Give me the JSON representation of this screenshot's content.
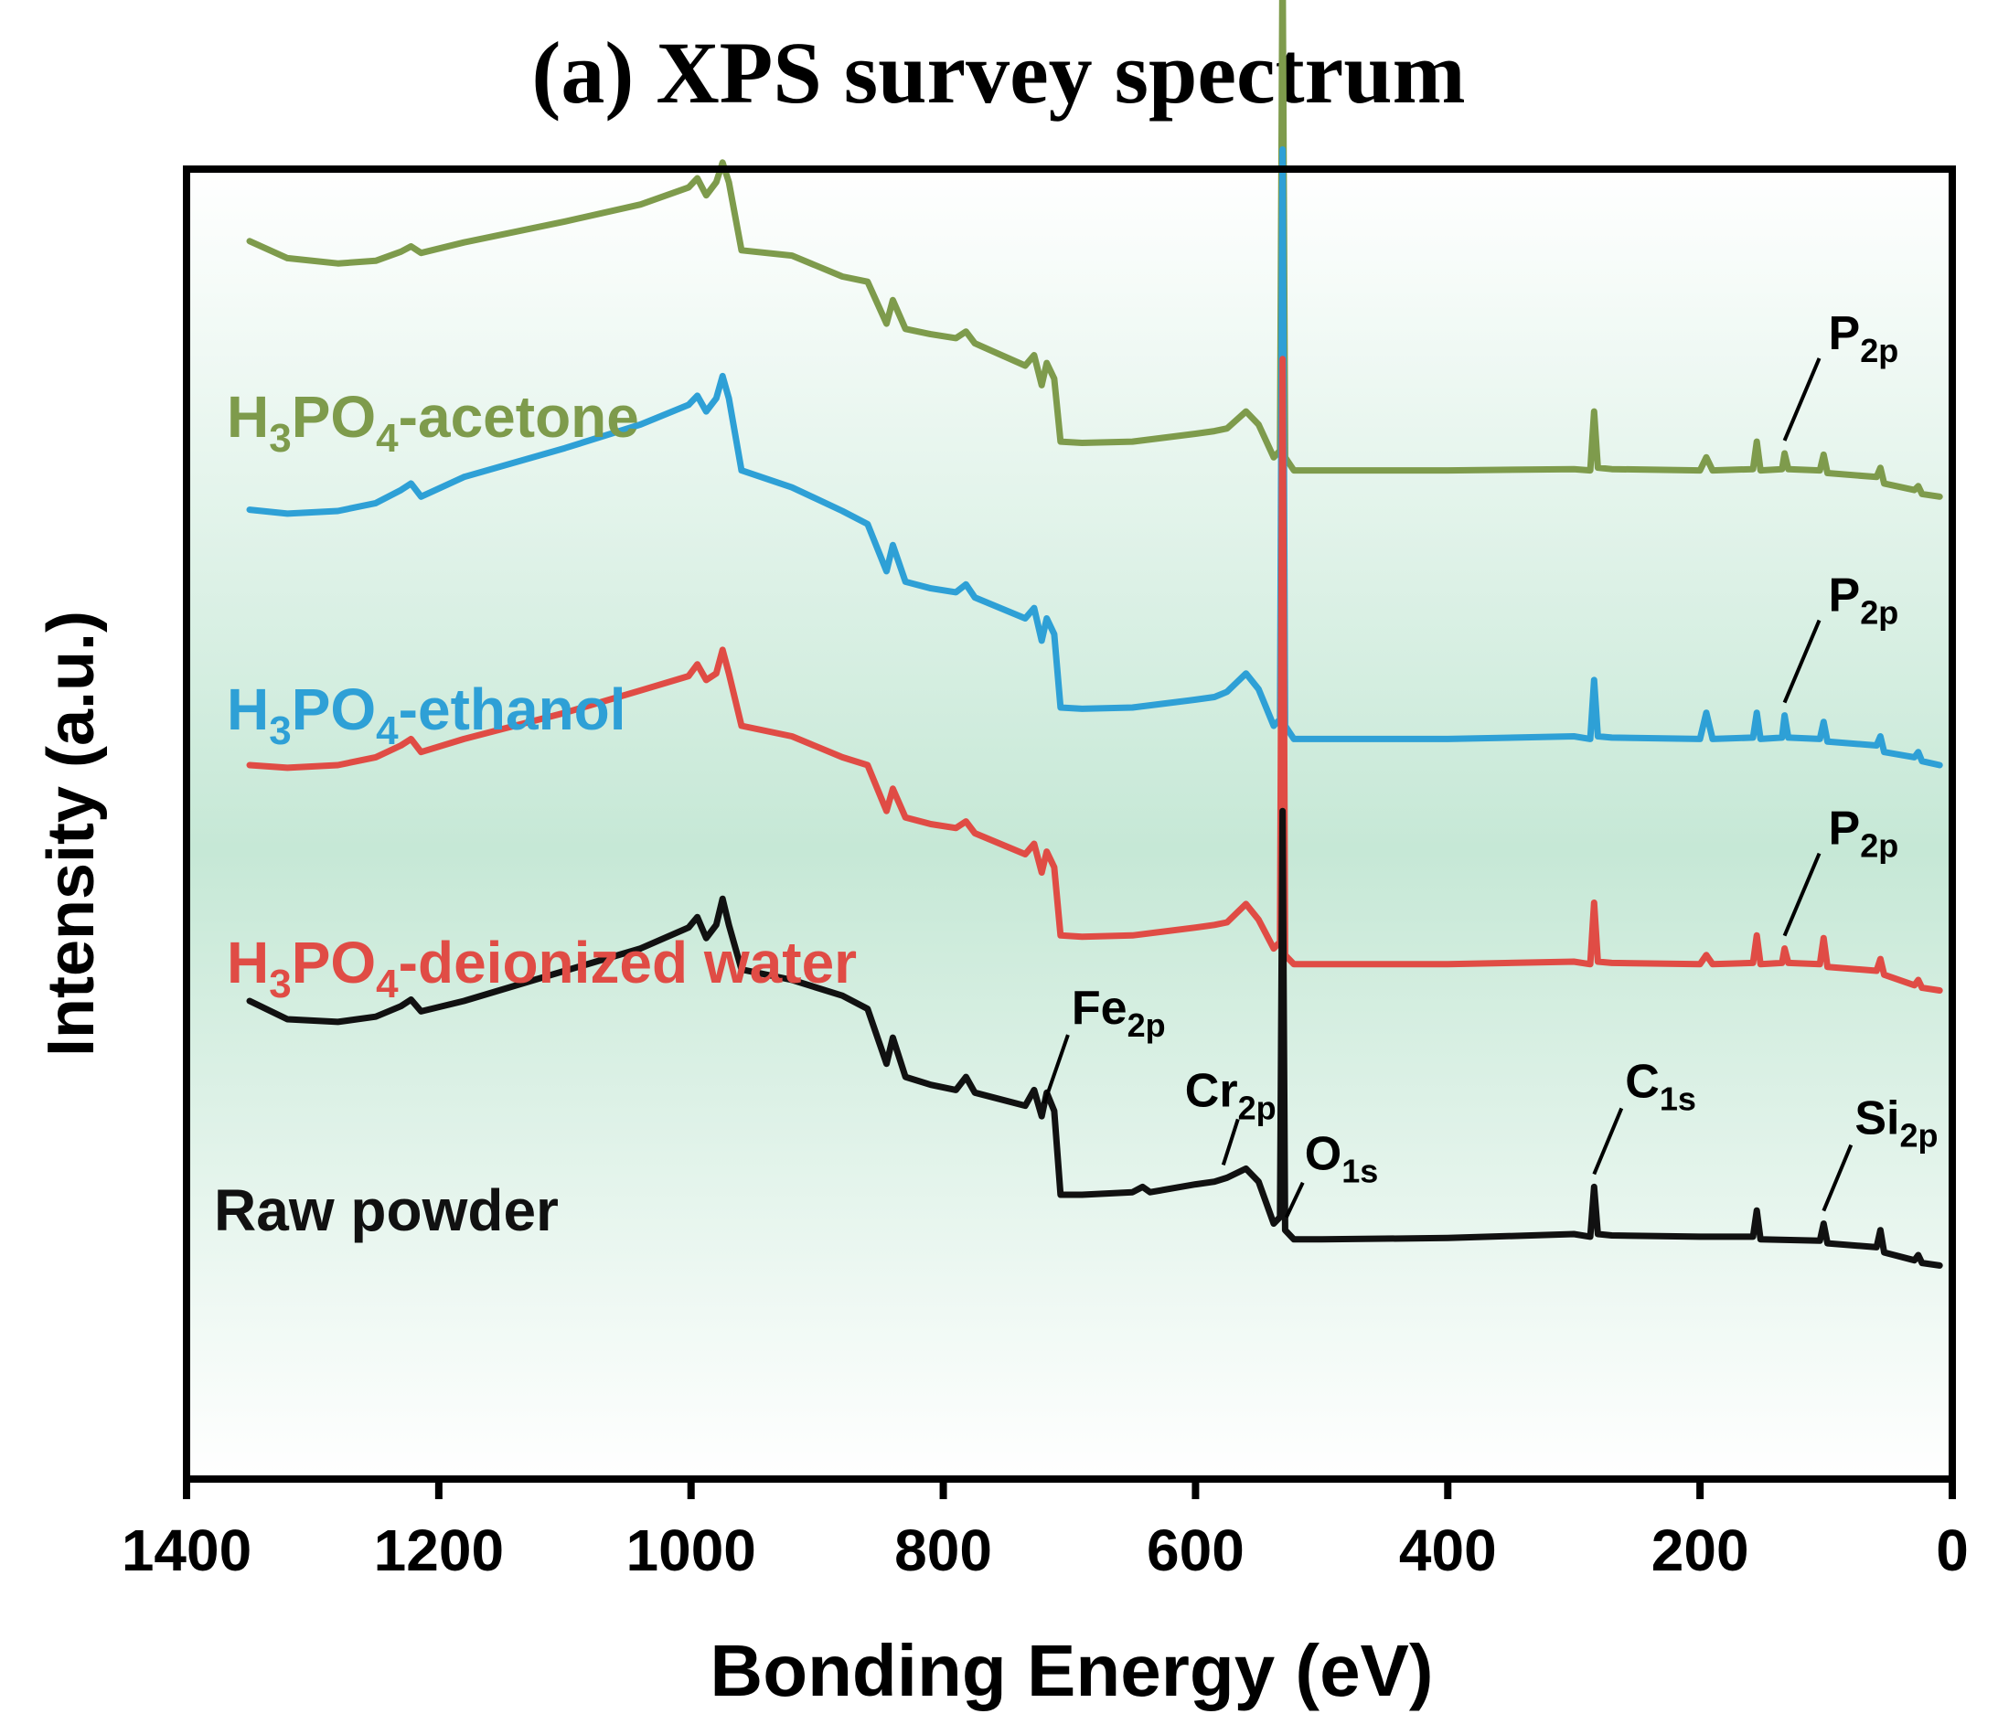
{
  "chart_data": {
    "type": "line",
    "title": "(a) XPS survey spectrum",
    "xlabel": "Bonding Energy (eV)",
    "ylabel": "Intensity (a.u.)",
    "xlim": [
      1400,
      0
    ],
    "x_reversed": true,
    "ylim": [
      0,
      10
    ],
    "xticks": [
      1400,
      1200,
      1000,
      800,
      600,
      400,
      200,
      0
    ],
    "ytick_labels_shown": false,
    "grid": false,
    "background_colors": [
      "#ffffff",
      "#c6e8d6",
      "#ffffff"
    ],
    "series": [
      {
        "name": "H3PO4-acetone",
        "label": {
          "main": "H",
          "sub1": "3",
          "mid": "PO",
          "sub2": "4",
          "tail": "-acetone"
        },
        "color": "#7e9b4c",
        "offset": 7.2,
        "points": [
          [
            1350,
            2.25
          ],
          [
            1320,
            2.12
          ],
          [
            1280,
            2.08
          ],
          [
            1250,
            2.1
          ],
          [
            1230,
            2.17
          ],
          [
            1222,
            2.21
          ],
          [
            1214,
            2.16
          ],
          [
            1180,
            2.24
          ],
          [
            1100,
            2.4
          ],
          [
            1040,
            2.53
          ],
          [
            1002,
            2.66
          ],
          [
            995,
            2.73
          ],
          [
            988,
            2.6
          ],
          [
            980,
            2.7
          ],
          [
            975,
            2.85
          ],
          [
            970,
            2.7
          ],
          [
            960,
            2.18
          ],
          [
            920,
            2.14
          ],
          [
            880,
            1.98
          ],
          [
            860,
            1.94
          ],
          [
            845,
            1.62
          ],
          [
            840,
            1.8
          ],
          [
            830,
            1.58
          ],
          [
            810,
            1.54
          ],
          [
            790,
            1.51
          ],
          [
            782,
            1.56
          ],
          [
            775,
            1.47
          ],
          [
            735,
            1.3
          ],
          [
            728,
            1.38
          ],
          [
            722,
            1.15
          ],
          [
            718,
            1.32
          ],
          [
            712,
            1.2
          ],
          [
            707,
            0.72
          ],
          [
            690,
            0.71
          ],
          [
            650,
            0.72
          ],
          [
            600,
            0.78
          ],
          [
            585,
            0.8
          ],
          [
            575,
            0.82
          ],
          [
            560,
            0.95
          ],
          [
            550,
            0.85
          ],
          [
            538,
            0.6
          ],
          [
            533,
            0.65
          ],
          [
            531,
            4.5
          ],
          [
            529,
            0.6
          ],
          [
            522,
            0.5
          ],
          [
            500,
            0.5
          ],
          [
            400,
            0.5
          ],
          [
            300,
            0.51
          ],
          [
            287,
            0.5
          ],
          [
            284,
            0.95
          ],
          [
            281,
            0.52
          ],
          [
            270,
            0.51
          ],
          [
            200,
            0.5
          ],
          [
            195,
            0.6
          ],
          [
            190,
            0.5
          ],
          [
            158,
            0.51
          ],
          [
            155,
            0.72
          ],
          [
            152,
            0.5
          ],
          [
            135,
            0.51
          ],
          [
            133,
            0.63
          ],
          [
            130,
            0.51
          ],
          [
            105,
            0.5
          ],
          [
            102,
            0.62
          ],
          [
            99,
            0.48
          ],
          [
            60,
            0.45
          ],
          [
            57,
            0.52
          ],
          [
            54,
            0.4
          ],
          [
            30,
            0.35
          ],
          [
            27,
            0.38
          ],
          [
            24,
            0.32
          ],
          [
            10,
            0.3
          ]
        ]
      },
      {
        "name": "H3PO4-ethanol",
        "label": {
          "main": "H",
          "sub1": "3",
          "mid": "PO",
          "sub2": "4",
          "tail": "-ethanol"
        },
        "color": "#2ea0d6",
        "offset": 5.15,
        "points": [
          [
            1350,
            2.25
          ],
          [
            1320,
            2.22
          ],
          [
            1280,
            2.24
          ],
          [
            1250,
            2.3
          ],
          [
            1230,
            2.4
          ],
          [
            1222,
            2.45
          ],
          [
            1214,
            2.35
          ],
          [
            1180,
            2.5
          ],
          [
            1100,
            2.72
          ],
          [
            1040,
            2.9
          ],
          [
            1002,
            3.05
          ],
          [
            995,
            3.12
          ],
          [
            988,
            3.0
          ],
          [
            980,
            3.1
          ],
          [
            975,
            3.27
          ],
          [
            970,
            3.1
          ],
          [
            960,
            2.55
          ],
          [
            920,
            2.42
          ],
          [
            880,
            2.24
          ],
          [
            860,
            2.14
          ],
          [
            845,
            1.78
          ],
          [
            840,
            1.98
          ],
          [
            830,
            1.7
          ],
          [
            810,
            1.65
          ],
          [
            790,
            1.62
          ],
          [
            782,
            1.68
          ],
          [
            775,
            1.58
          ],
          [
            735,
            1.42
          ],
          [
            728,
            1.5
          ],
          [
            722,
            1.25
          ],
          [
            718,
            1.42
          ],
          [
            712,
            1.3
          ],
          [
            707,
            0.74
          ],
          [
            690,
            0.73
          ],
          [
            650,
            0.74
          ],
          [
            600,
            0.8
          ],
          [
            585,
            0.82
          ],
          [
            575,
            0.86
          ],
          [
            560,
            1.0
          ],
          [
            550,
            0.88
          ],
          [
            538,
            0.6
          ],
          [
            533,
            0.65
          ],
          [
            531,
            5.0
          ],
          [
            529,
            0.6
          ],
          [
            522,
            0.5
          ],
          [
            500,
            0.5
          ],
          [
            400,
            0.5
          ],
          [
            300,
            0.52
          ],
          [
            287,
            0.5
          ],
          [
            284,
            0.95
          ],
          [
            281,
            0.52
          ],
          [
            270,
            0.51
          ],
          [
            200,
            0.5
          ],
          [
            195,
            0.7
          ],
          [
            190,
            0.5
          ],
          [
            158,
            0.51
          ],
          [
            155,
            0.7
          ],
          [
            152,
            0.5
          ],
          [
            135,
            0.51
          ],
          [
            133,
            0.68
          ],
          [
            130,
            0.51
          ],
          [
            105,
            0.5
          ],
          [
            102,
            0.63
          ],
          [
            99,
            0.48
          ],
          [
            60,
            0.45
          ],
          [
            57,
            0.52
          ],
          [
            54,
            0.4
          ],
          [
            30,
            0.36
          ],
          [
            27,
            0.4
          ],
          [
            24,
            0.33
          ],
          [
            10,
            0.3
          ]
        ]
      },
      {
        "name": "H3PO4-deionized water",
        "label": {
          "main": "H",
          "sub1": "3",
          "mid": "PO",
          "sub2": "4",
          "tail": "-deionized water"
        },
        "color": "#e04c45",
        "offset": 3.55,
        "points": [
          [
            1350,
            1.9
          ],
          [
            1320,
            1.88
          ],
          [
            1280,
            1.9
          ],
          [
            1250,
            1.96
          ],
          [
            1230,
            2.05
          ],
          [
            1222,
            2.1
          ],
          [
            1214,
            2.0
          ],
          [
            1180,
            2.1
          ],
          [
            1100,
            2.3
          ],
          [
            1040,
            2.47
          ],
          [
            1002,
            2.58
          ],
          [
            995,
            2.67
          ],
          [
            988,
            2.55
          ],
          [
            980,
            2.6
          ],
          [
            975,
            2.78
          ],
          [
            970,
            2.6
          ],
          [
            960,
            2.2
          ],
          [
            920,
            2.12
          ],
          [
            880,
            1.96
          ],
          [
            860,
            1.9
          ],
          [
            845,
            1.55
          ],
          [
            840,
            1.72
          ],
          [
            830,
            1.5
          ],
          [
            810,
            1.45
          ],
          [
            790,
            1.42
          ],
          [
            782,
            1.47
          ],
          [
            775,
            1.38
          ],
          [
            735,
            1.22
          ],
          [
            728,
            1.3
          ],
          [
            722,
            1.08
          ],
          [
            718,
            1.24
          ],
          [
            712,
            1.12
          ],
          [
            707,
            0.6
          ],
          [
            690,
            0.59
          ],
          [
            650,
            0.6
          ],
          [
            600,
            0.66
          ],
          [
            585,
            0.68
          ],
          [
            575,
            0.7
          ],
          [
            560,
            0.84
          ],
          [
            550,
            0.72
          ],
          [
            538,
            0.5
          ],
          [
            533,
            0.55
          ],
          [
            531,
            5.0
          ],
          [
            529,
            0.45
          ],
          [
            522,
            0.38
          ],
          [
            500,
            0.38
          ],
          [
            400,
            0.38
          ],
          [
            300,
            0.4
          ],
          [
            287,
            0.38
          ],
          [
            284,
            0.85
          ],
          [
            281,
            0.4
          ],
          [
            270,
            0.39
          ],
          [
            200,
            0.38
          ],
          [
            195,
            0.45
          ],
          [
            190,
            0.38
          ],
          [
            158,
            0.39
          ],
          [
            155,
            0.6
          ],
          [
            152,
            0.38
          ],
          [
            135,
            0.39
          ],
          [
            133,
            0.5
          ],
          [
            130,
            0.39
          ],
          [
            105,
            0.38
          ],
          [
            102,
            0.58
          ],
          [
            99,
            0.36
          ],
          [
            60,
            0.33
          ],
          [
            57,
            0.42
          ],
          [
            54,
            0.3
          ],
          [
            30,
            0.22
          ],
          [
            27,
            0.26
          ],
          [
            24,
            0.2
          ],
          [
            10,
            0.18
          ]
        ]
      },
      {
        "name": "Raw powder",
        "label": {
          "main": "Raw powder",
          "sub1": "",
          "mid": "",
          "sub2": "",
          "tail": ""
        },
        "color": "#111111",
        "offset": 1.45,
        "points": [
          [
            1350,
            2.2
          ],
          [
            1320,
            2.06
          ],
          [
            1280,
            2.04
          ],
          [
            1250,
            2.08
          ],
          [
            1230,
            2.16
          ],
          [
            1222,
            2.21
          ],
          [
            1214,
            2.12
          ],
          [
            1180,
            2.2
          ],
          [
            1100,
            2.43
          ],
          [
            1040,
            2.6
          ],
          [
            1002,
            2.76
          ],
          [
            995,
            2.84
          ],
          [
            988,
            2.68
          ],
          [
            980,
            2.78
          ],
          [
            975,
            2.98
          ],
          [
            970,
            2.78
          ],
          [
            960,
            2.44
          ],
          [
            920,
            2.36
          ],
          [
            880,
            2.24
          ],
          [
            860,
            2.14
          ],
          [
            845,
            1.72
          ],
          [
            840,
            1.92
          ],
          [
            830,
            1.62
          ],
          [
            810,
            1.56
          ],
          [
            790,
            1.52
          ],
          [
            782,
            1.62
          ],
          [
            775,
            1.5
          ],
          [
            735,
            1.4
          ],
          [
            728,
            1.52
          ],
          [
            722,
            1.32
          ],
          [
            718,
            1.5
          ],
          [
            712,
            1.36
          ],
          [
            707,
            0.72
          ],
          [
            690,
            0.72
          ],
          [
            650,
            0.74
          ],
          [
            642,
            0.78
          ],
          [
            636,
            0.74
          ],
          [
            600,
            0.8
          ],
          [
            585,
            0.82
          ],
          [
            575,
            0.85
          ],
          [
            560,
            0.92
          ],
          [
            550,
            0.82
          ],
          [
            538,
            0.5
          ],
          [
            533,
            0.55
          ],
          [
            531,
            3.65
          ],
          [
            529,
            0.45
          ],
          [
            522,
            0.38
          ],
          [
            500,
            0.38
          ],
          [
            400,
            0.39
          ],
          [
            300,
            0.42
          ],
          [
            287,
            0.4
          ],
          [
            284,
            0.78
          ],
          [
            281,
            0.42
          ],
          [
            270,
            0.41
          ],
          [
            200,
            0.4
          ],
          [
            158,
            0.4
          ],
          [
            155,
            0.6
          ],
          [
            152,
            0.38
          ],
          [
            105,
            0.37
          ],
          [
            102,
            0.5
          ],
          [
            99,
            0.35
          ],
          [
            60,
            0.32
          ],
          [
            57,
            0.45
          ],
          [
            54,
            0.28
          ],
          [
            30,
            0.22
          ],
          [
            27,
            0.26
          ],
          [
            24,
            0.2
          ],
          [
            10,
            0.18
          ]
        ]
      }
    ],
    "annotations": [
      {
        "series": "H3PO4-acetone",
        "main": "P",
        "sub": "2p",
        "x": 133
      },
      {
        "series": "H3PO4-ethanol",
        "main": "P",
        "sub": "2p",
        "x": 133
      },
      {
        "series": "H3PO4-deionized water",
        "main": "P",
        "sub": "2p",
        "x": 133
      },
      {
        "series": "Raw powder",
        "main": "Fe",
        "sub": "2p",
        "x": 720
      },
      {
        "series": "Raw powder",
        "main": "Cr",
        "sub": "2p",
        "x": 578
      },
      {
        "series": "Raw powder",
        "main": "O",
        "sub": "1s",
        "x": 528
      },
      {
        "series": "Raw powder",
        "main": "C",
        "sub": "1s",
        "x": 284
      },
      {
        "series": "Raw powder",
        "main": "Si",
        "sub": "2p",
        "x": 102
      }
    ]
  }
}
